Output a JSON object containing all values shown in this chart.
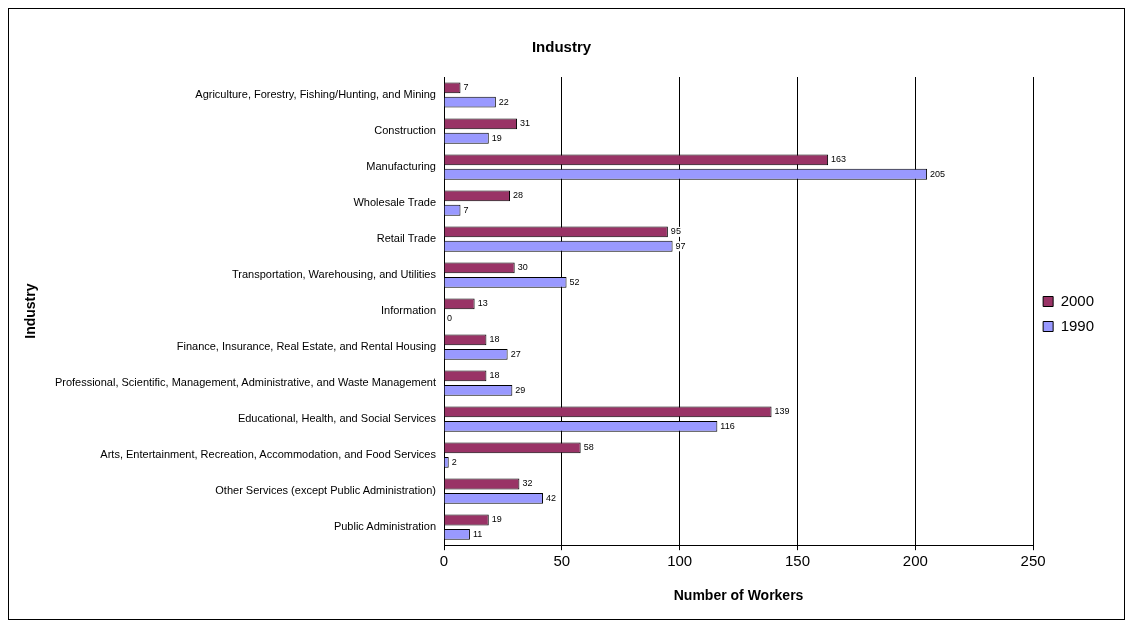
{
  "chart_data": {
    "type": "bar",
    "orientation": "horizontal",
    "title": "Industry",
    "xlabel": "Number of Workers",
    "ylabel": "Industry",
    "categories": [
      "Agriculture, Forestry, Fishing/Hunting, and Mining",
      "Construction",
      "Manufacturing",
      "Wholesale Trade",
      "Retail Trade",
      "Transportation, Warehousing, and Utilities",
      "Information",
      "Finance, Insurance, Real Estate, and Rental Housing",
      "Professional, Scientific, Management, Administrative, and Waste Management",
      "Educational, Health, and Social Services",
      "Arts, Entertainment, Recreation, Accommodation, and Food Services",
      "Other Services (except Public Administration)",
      "Public Administration"
    ],
    "series": [
      {
        "name": "2000",
        "color": "#993366",
        "values": [
          7,
          31,
          163,
          28,
          95,
          30,
          13,
          18,
          18,
          139,
          58,
          32,
          19
        ]
      },
      {
        "name": "1990",
        "color": "#9999ff",
        "values": [
          22,
          19,
          205,
          7,
          97,
          52,
          0,
          27,
          29,
          116,
          2,
          42,
          11
        ]
      }
    ],
    "xlim": [
      0,
      250
    ],
    "xticks": [
      0,
      50,
      100,
      150,
      200,
      250
    ],
    "grid": "x",
    "legend": "right",
    "data_labels": true
  }
}
